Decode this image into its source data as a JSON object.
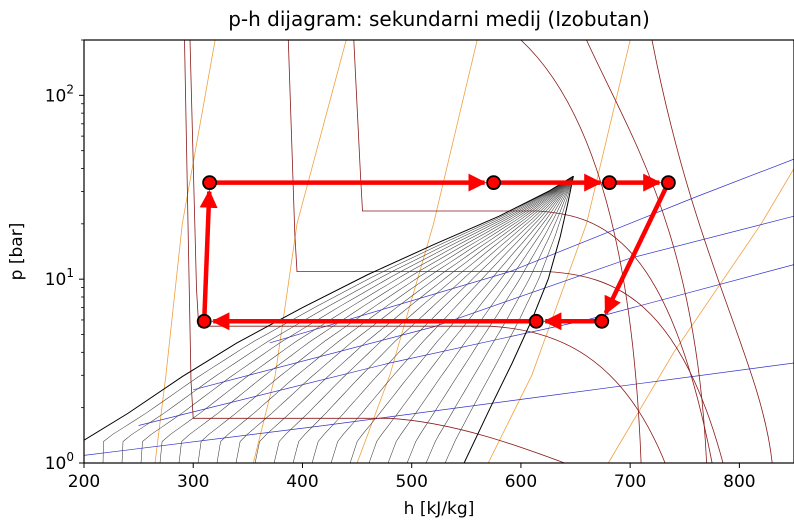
{
  "chart_data": {
    "type": "line",
    "title": "p-h dijagram: sekundarni medij (Izobutan)",
    "xlabel": "h [kJ/kg]",
    "ylabel": "p [bar]",
    "xlim": [
      200,
      850
    ],
    "ylim": [
      1,
      200
    ],
    "y_scale": "log",
    "x_ticks": [
      200,
      300,
      400,
      500,
      600,
      700,
      800
    ],
    "y_ticks": [
      {
        "value": 1,
        "base": "10",
        "exp": "0"
      },
      {
        "value": 10,
        "base": "10",
        "exp": "1"
      },
      {
        "value": 100,
        "base": "10",
        "exp": "2"
      }
    ],
    "grid": false,
    "colors": {
      "cycle": "#ff0000",
      "marker_edge": "#000000",
      "saturation_dome": "#000000",
      "quality_lines": "#3a3a3a",
      "isotherms": "#8b1a1a",
      "isentropes": "#3333cc",
      "isochores": "#f0a040"
    },
    "saturation_dome": {
      "liquid": {
        "h": [
          200,
          240,
          290,
          340,
          400,
          460,
          520,
          580,
          625,
          648
        ],
        "p": [
          1.33,
          1.86,
          2.95,
          4.5,
          7.0,
          10.6,
          15.4,
          22.0,
          30.0,
          36.3
        ]
      },
      "vapor": {
        "h": [
          548,
          572,
          592,
          610,
          625,
          636,
          643,
          648
        ],
        "p": [
          1.0,
          2.0,
          3.5,
          6.0,
          10.0,
          17.0,
          26.0,
          36.3
        ]
      }
    },
    "quality_lines": {
      "qualities": [
        0.05,
        0.1,
        0.15,
        0.2,
        0.25,
        0.3,
        0.35,
        0.4,
        0.45,
        0.5,
        0.55,
        0.6,
        0.65,
        0.7,
        0.75,
        0.8,
        0.85,
        0.9,
        0.95
      ]
    },
    "isotherms": [
      {
        "liquid_h": 305,
        "p": 5.55,
        "vapor_h": 572
      },
      {
        "liquid_h": 395,
        "p": 11.0,
        "vapor_h": 625
      },
      {
        "liquid_h": 300,
        "p": 1.75,
        "vapor_h": 480
      },
      {
        "liquid_h": 455,
        "p": 23.5,
        "vapor_h": 615
      }
    ],
    "isentropes": [
      {
        "h": [
          200,
          420,
          620,
          850
        ],
        "p": [
          1.1,
          1.6,
          2.3,
          3.5
        ]
      },
      {
        "h": [
          250,
          480,
          660,
          850
        ],
        "p": [
          1.6,
          3.5,
          6.0,
          12.0
        ]
      },
      {
        "h": [
          300,
          520,
          700,
          850
        ],
        "p": [
          2.5,
          5.5,
          13.0,
          22.0
        ]
      },
      {
        "h": [
          370,
          590,
          760,
          850
        ],
        "p": [
          4.5,
          11.0,
          28.0,
          45.0
        ]
      }
    ],
    "isochores": [
      {
        "h": [
          265,
          275,
          290,
          320
        ],
        "p": [
          1.0,
          3.0,
          20.0,
          200.0
        ]
      },
      {
        "h": [
          355,
          375,
          395,
          440
        ],
        "p": [
          1.0,
          3.0,
          20.0,
          200.0
        ]
      },
      {
        "h": [
          450,
          480,
          520,
          560
        ],
        "p": [
          1.0,
          3.0,
          20.0,
          200.0
        ]
      },
      {
        "h": [
          570,
          610,
          660,
          700
        ],
        "p": [
          1.0,
          3.0,
          20.0,
          200.0
        ]
      },
      {
        "h": [
          680,
          740,
          820,
          850
        ],
        "p": [
          1.0,
          4.0,
          20.0,
          40.0
        ]
      }
    ],
    "series": [
      {
        "points": [
          {
            "h": 310,
            "p": 5.9
          },
          {
            "h": 315,
            "p": 33.5
          },
          {
            "h": 575,
            "p": 33.5
          },
          {
            "h": 681,
            "p": 33.5
          },
          {
            "h": 735,
            "p": 33.5
          },
          {
            "h": 674,
            "p": 5.9
          },
          {
            "h": 614,
            "p": 5.9
          },
          {
            "h": 310,
            "p": 5.9
          }
        ]
      }
    ]
  }
}
